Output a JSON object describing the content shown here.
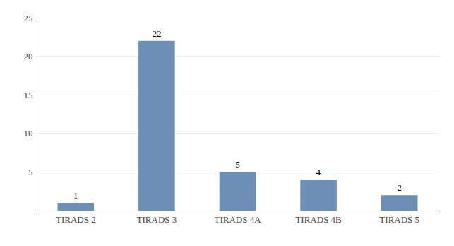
{
  "chart_data": {
    "type": "bar",
    "categories": [
      "TIRADS 2",
      "TIRADS 3",
      "TIRADS 4A",
      "TIRADS 4B",
      "TIRADS 5"
    ],
    "values": [
      1,
      22,
      5,
      4,
      2
    ],
    "color": "#6e8fb5",
    "ylim": [
      0,
      25
    ],
    "yticks": [
      5,
      10,
      15,
      20,
      25
    ],
    "grid": true,
    "data_labels": true
  }
}
